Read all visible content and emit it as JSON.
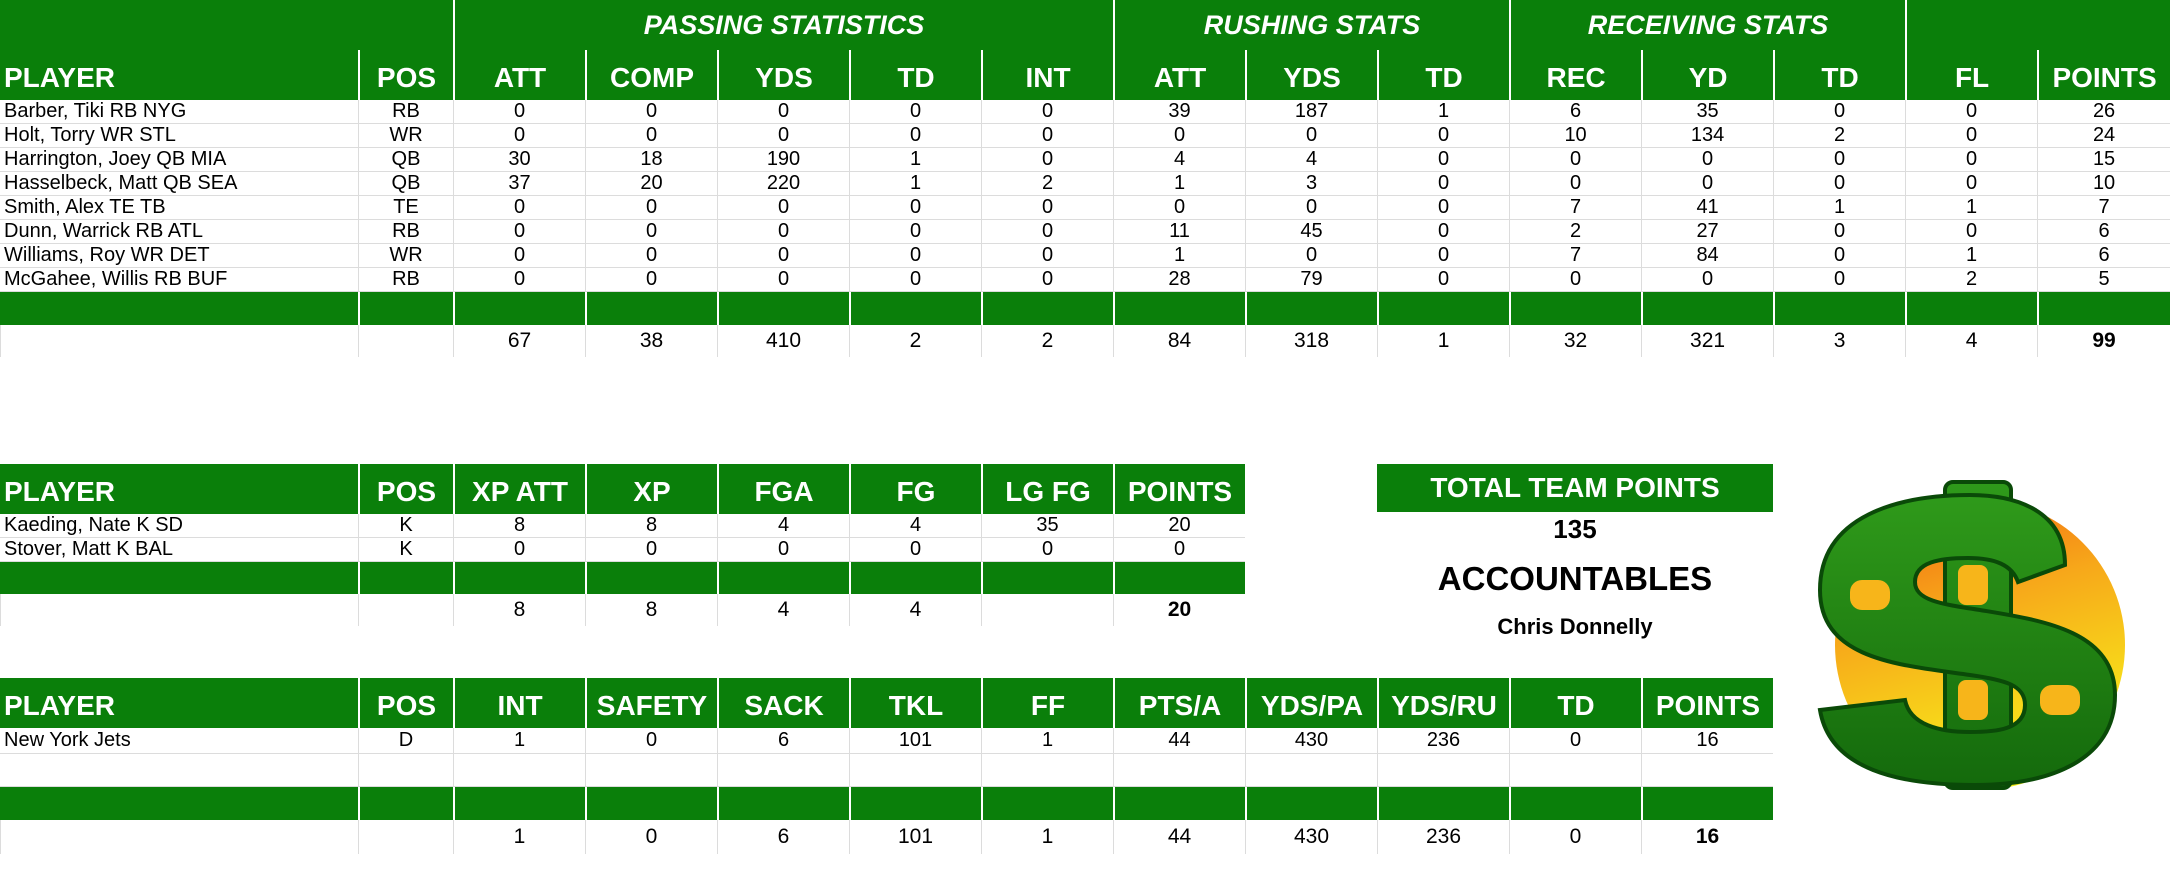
{
  "offense": {
    "group_headers": {
      "passing": "PASSING STATISTICS",
      "rushing": "RUSHING STATS",
      "receiving": "RECEIVING STATS"
    },
    "columns": [
      "PLAYER",
      "POS",
      "ATT",
      "COMP",
      "YDS",
      "TD",
      "INT",
      "ATT",
      "YDS",
      "TD",
      "REC",
      "YD",
      "TD",
      "FL",
      "POINTS"
    ],
    "rows": [
      [
        "Barber, Tiki RB NYG",
        "RB",
        "0",
        "0",
        "0",
        "0",
        "0",
        "39",
        "187",
        "1",
        "6",
        "35",
        "0",
        "0",
        "26"
      ],
      [
        "Holt, Torry WR STL",
        "WR",
        "0",
        "0",
        "0",
        "0",
        "0",
        "0",
        "0",
        "0",
        "10",
        "134",
        "2",
        "0",
        "24"
      ],
      [
        "Harrington, Joey QB MIA",
        "QB",
        "30",
        "18",
        "190",
        "1",
        "0",
        "4",
        "4",
        "0",
        "0",
        "0",
        "0",
        "0",
        "15"
      ],
      [
        "Hasselbeck, Matt QB SEA",
        "QB",
        "37",
        "20",
        "220",
        "1",
        "2",
        "1",
        "3",
        "0",
        "0",
        "0",
        "0",
        "0",
        "10"
      ],
      [
        "Smith, Alex TE TB",
        "TE",
        "0",
        "0",
        "0",
        "0",
        "0",
        "0",
        "0",
        "0",
        "7",
        "41",
        "1",
        "1",
        "7"
      ],
      [
        "Dunn, Warrick RB ATL",
        "RB",
        "0",
        "0",
        "0",
        "0",
        "0",
        "11",
        "45",
        "0",
        "2",
        "27",
        "0",
        "0",
        "6"
      ],
      [
        "Williams, Roy WR DET",
        "WR",
        "0",
        "0",
        "0",
        "0",
        "0",
        "1",
        "0",
        "0",
        "7",
        "84",
        "0",
        "1",
        "6"
      ],
      [
        "McGahee, Willis RB BUF",
        "RB",
        "0",
        "0",
        "0",
        "0",
        "0",
        "28",
        "79",
        "0",
        "0",
        "0",
        "0",
        "2",
        "5"
      ]
    ],
    "totals": [
      "",
      "",
      "67",
      "38",
      "410",
      "2",
      "2",
      "84",
      "318",
      "1",
      "32",
      "321",
      "3",
      "4",
      "99"
    ]
  },
  "kicking": {
    "columns": [
      "PLAYER",
      "POS",
      "XP ATT",
      "XP",
      "FGA",
      "FG",
      "LG FG",
      "POINTS"
    ],
    "rows": [
      [
        "Kaeding, Nate K SD",
        "K",
        "8",
        "8",
        "4",
        "4",
        "35",
        "20"
      ],
      [
        "Stover, Matt K BAL",
        "K",
        "0",
        "0",
        "0",
        "0",
        "0",
        "0"
      ]
    ],
    "totals": [
      "",
      "",
      "8",
      "8",
      "4",
      "4",
      "",
      "20"
    ]
  },
  "defense": {
    "columns": [
      "PLAYER",
      "POS",
      "INT",
      "SAFETY",
      "SACK",
      "TKL",
      "FF",
      "PTS/A",
      "YDS/PA",
      "YDS/RU",
      "TD",
      "POINTS"
    ],
    "rows": [
      [
        "New York Jets",
        "D",
        "1",
        "0",
        "6",
        "101",
        "1",
        "44",
        "430",
        "236",
        "0",
        "16"
      ]
    ],
    "totals": [
      "",
      "",
      "1",
      "0",
      "6",
      "101",
      "1",
      "44",
      "430",
      "236",
      "0",
      "16"
    ]
  },
  "summary": {
    "total_label": "TOTAL TEAM POINTS",
    "total_value": "135",
    "team_name": "ACCOUNTABLES",
    "owner": "Chris Donnelly"
  },
  "logo": {
    "icon": "dollar-sign-logo-icon",
    "colors": {
      "green": "#1e8a12",
      "orange": "#f07a10",
      "yellow": "#f7e21a"
    }
  }
}
